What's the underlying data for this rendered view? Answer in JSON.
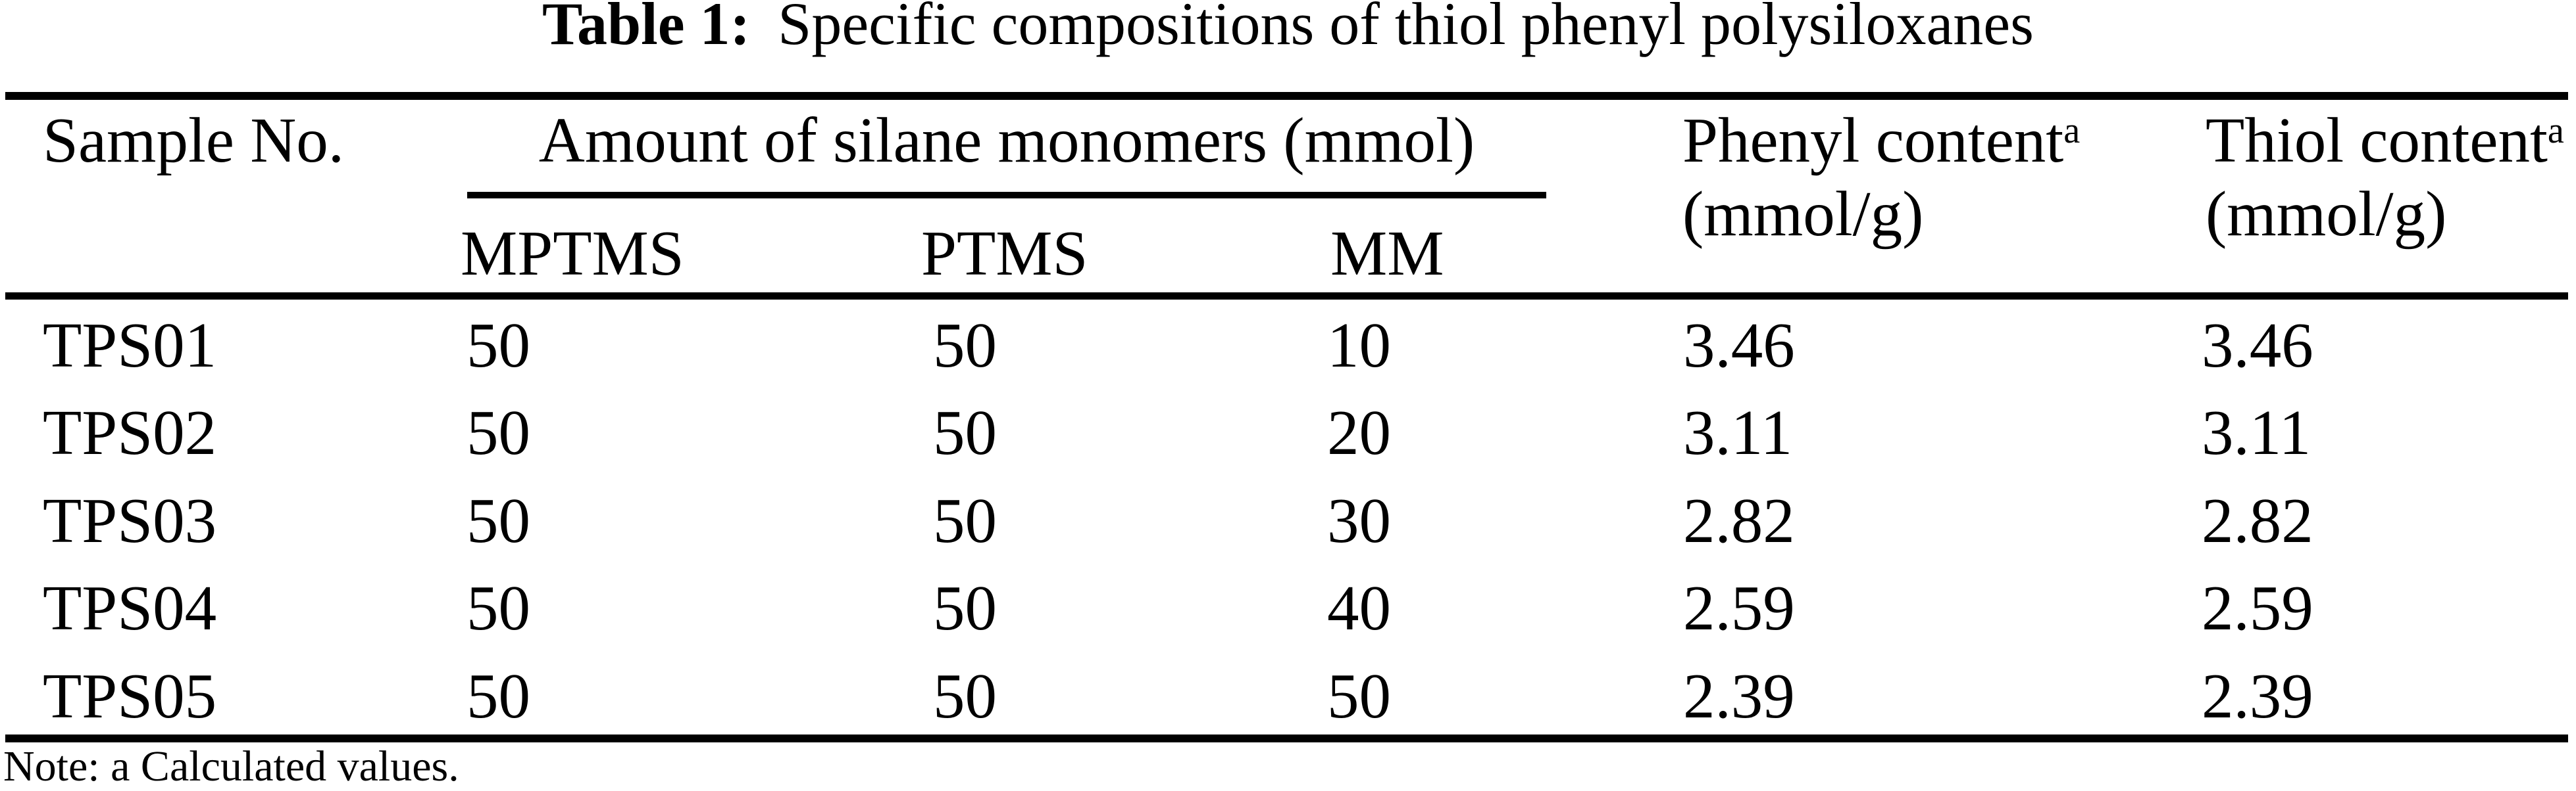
{
  "title": {
    "label": "Table 1:",
    "text": "Specific compositions of thiol phenyl polysiloxanes"
  },
  "table": {
    "header": {
      "sample": "Sample No.",
      "silane_group": "Amount of silane monomers (mmol)",
      "silane_columns": [
        "MPTMS",
        "PTMS",
        "MM"
      ],
      "phenyl": {
        "line1": "Phenyl content",
        "sup": "a",
        "line2": "(mmol/g)"
      },
      "thiol": {
        "line1": "Thiol content",
        "sup": "a",
        "line2": "(mmol/g)"
      }
    },
    "rows": [
      {
        "sample": "TPS01",
        "mptms": "50",
        "ptms": "50",
        "mm": "10",
        "phenyl_content": "3.46",
        "thiol_content": "3.46"
      },
      {
        "sample": "TPS02",
        "mptms": "50",
        "ptms": "50",
        "mm": "20",
        "phenyl_content": "3.11",
        "thiol_content": "3.11"
      },
      {
        "sample": "TPS03",
        "mptms": "50",
        "ptms": "50",
        "mm": "30",
        "phenyl_content": "2.82",
        "thiol_content": "2.82"
      },
      {
        "sample": "TPS04",
        "mptms": "50",
        "ptms": "50",
        "mm": "40",
        "phenyl_content": "2.59",
        "thiol_content": "2.59"
      },
      {
        "sample": "TPS05",
        "mptms": "50",
        "ptms": "50",
        "mm": "50",
        "phenyl_content": "2.39",
        "thiol_content": "2.39"
      }
    ]
  },
  "note": "Note: a Calculated values.",
  "colors": {
    "background": "#ffffff",
    "text": "#000000",
    "rule": "#000000"
  }
}
